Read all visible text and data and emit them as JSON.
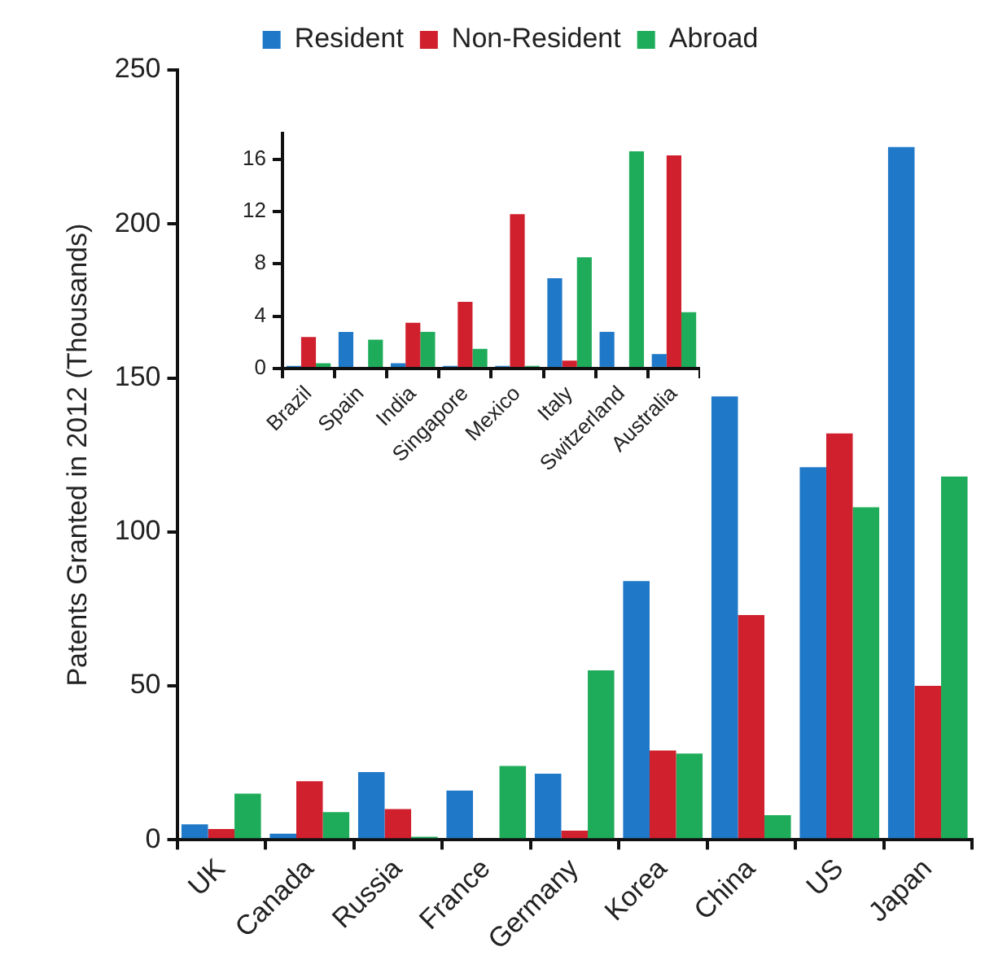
{
  "chart_data": [
    {
      "type": "bar",
      "ylabel": "Patents Granted in 2012 (Thousands)",
      "categories": [
        "UK",
        "Canada",
        "Russia",
        "France",
        "Germany",
        "Korea",
        "China",
        "US",
        "Japan"
      ],
      "series": [
        {
          "name": "Resident",
          "color": "#1f78c8",
          "values": [
            5,
            2,
            22,
            16,
            21.5,
            84,
            144,
            121,
            225
          ]
        },
        {
          "name": "Non-Resident",
          "color": "#d0202e",
          "values": [
            3.5,
            19,
            10,
            null,
            3,
            29,
            73,
            132,
            50
          ]
        },
        {
          "name": "Abroad",
          "color": "#1fac5a",
          "values": [
            15,
            9,
            1,
            24,
            55,
            28,
            8,
            108,
            118
          ]
        }
      ],
      "ylim": [
        0,
        250
      ],
      "yticks": [
        0,
        50,
        100,
        150,
        200,
        250
      ],
      "legend": "top"
    },
    {
      "type": "bar",
      "categories": [
        "Brazil",
        "Spain",
        "India",
        "Singapore",
        "Mexico",
        "Italy",
        "Switzerland",
        "Australia"
      ],
      "series": [
        {
          "color": "#1f78c8",
          "values": [
            0.2,
            2.8,
            0.4,
            0.2,
            0.2,
            6.9,
            2.8,
            1.1
          ]
        },
        {
          "color": "#d0202e",
          "values": [
            2.4,
            0,
            3.5,
            5.1,
            11.8,
            0.6,
            0,
            16.3
          ]
        },
        {
          "color": "#1fac5a",
          "values": [
            0.4,
            2.2,
            2.8,
            1.5,
            0.2,
            8.5,
            16.6,
            4.3
          ]
        }
      ],
      "ylim": [
        0,
        18
      ],
      "yticks": [
        0,
        4,
        8,
        12,
        16
      ]
    }
  ]
}
